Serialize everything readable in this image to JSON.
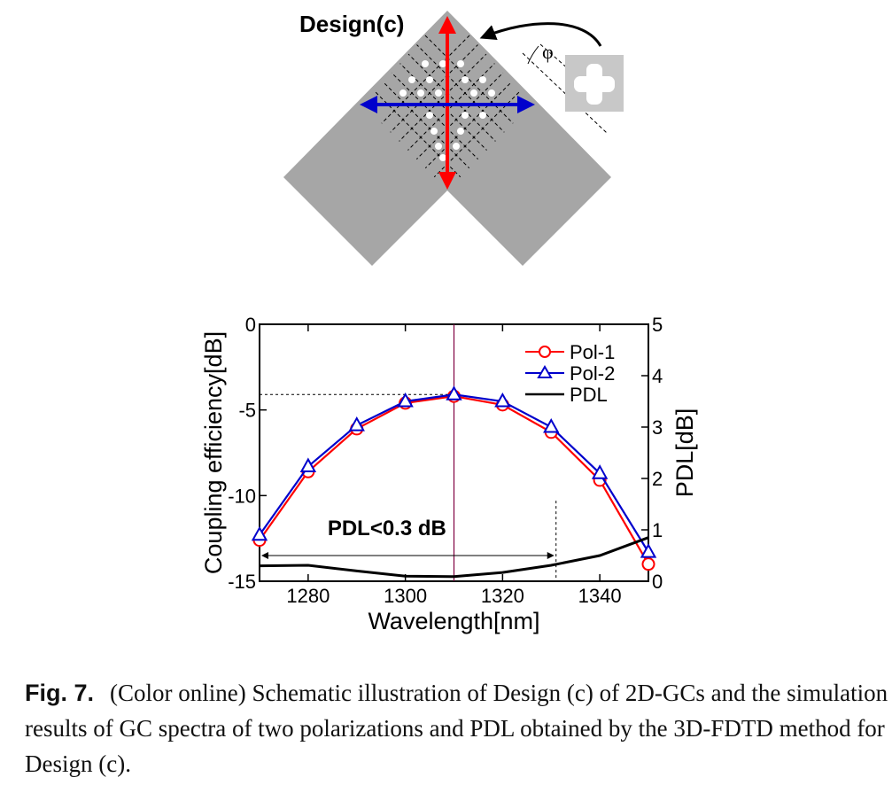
{
  "schematic": {
    "title": "Design(c)",
    "angle_symbol": "φ",
    "colors": {
      "waveguide": "#a6a6a6",
      "pol1_arrow": "#ff0000",
      "pol2_arrow": "#0000cc",
      "dashed": "#000000",
      "holes": "#ffffff"
    },
    "icon": "plus-shape-icon"
  },
  "chart_data": {
    "type": "line",
    "xlabel": "Wavelength[nm]",
    "ylabel": "Coupling efficiency[dB]",
    "y2label": "PDL[dB]",
    "xlim": [
      1270,
      1350
    ],
    "ylim": [
      -15,
      0
    ],
    "y2lim": [
      0,
      5
    ],
    "xticks": [
      1280,
      1300,
      1320,
      1340
    ],
    "yticks": [
      0,
      -5,
      -10,
      -15
    ],
    "y2ticks": [
      0,
      1,
      2,
      3,
      4,
      5
    ],
    "legend_position": "top-right",
    "annotation": "PDL<0.3 dB",
    "series": [
      {
        "name": "Pol-1",
        "axis": "left",
        "color": "#ff0000",
        "marker": "circle",
        "x": [
          1270,
          1280,
          1290,
          1300,
          1310,
          1320,
          1330,
          1340,
          1350
        ],
        "y": [
          -12.6,
          -8.6,
          -6.1,
          -4.6,
          -4.2,
          -4.7,
          -6.3,
          -9.1,
          -14.0
        ]
      },
      {
        "name": "Pol-2",
        "axis": "left",
        "color": "#0000cc",
        "marker": "triangle",
        "x": [
          1270,
          1280,
          1290,
          1300,
          1310,
          1320,
          1330,
          1340,
          1350
        ],
        "y": [
          -12.3,
          -8.3,
          -5.9,
          -4.5,
          -4.1,
          -4.5,
          -6.0,
          -8.7,
          -13.3
        ]
      },
      {
        "name": "PDL",
        "axis": "right",
        "color": "#000000",
        "marker": "none",
        "x": [
          1270,
          1280,
          1290,
          1300,
          1310,
          1320,
          1330,
          1340,
          1350
        ],
        "y": [
          0.3,
          0.31,
          0.2,
          0.1,
          0.09,
          0.17,
          0.31,
          0.5,
          0.85
        ]
      }
    ],
    "reference_lines": {
      "vertical_at_x": 1310,
      "horizontal_at_y": -4.1,
      "range_end_x": 1331
    }
  },
  "caption": {
    "label": "Fig. 7.",
    "text": "(Color online) Schematic illustration of Design (c) of 2D-GCs and the simulation results of GC spectra of two polarizations and PDL obtained by the 3D-FDTD method for Design (c)."
  }
}
